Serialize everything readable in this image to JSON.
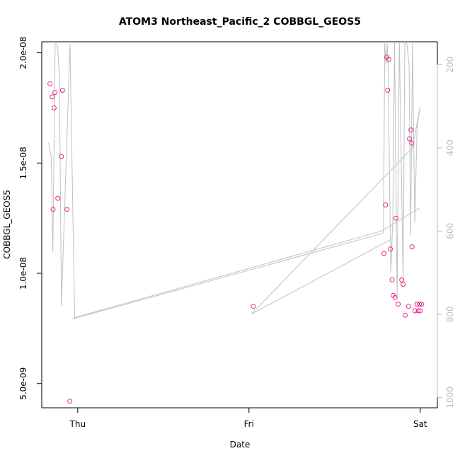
{
  "chart_data": {
    "type": "scatter",
    "title": "ATOM3 Northeast_Pacific_2 COBBGL_GEOS5",
    "xlabel": "Date",
    "ylabel": "COBBGL_GEOS5",
    "x_ticks": [
      {
        "label": "Thu",
        "value": 1.0
      },
      {
        "label": "Fri",
        "value": 2.0
      },
      {
        "label": "Sat",
        "value": 3.0
      }
    ],
    "y_ticks": [
      {
        "label": "5.0e-09",
        "value": 5e-09
      },
      {
        "label": "1.0e-08",
        "value": 1e-08
      },
      {
        "label": "1.5e-08",
        "value": 1.5e-08
      },
      {
        "label": "2.0e-08",
        "value": 2e-08
      }
    ],
    "y2_ticks": [
      {
        "label": "200",
        "value": 200
      },
      {
        "label": "400",
        "value": 400
      },
      {
        "label": "600",
        "value": 600
      },
      {
        "label": "800",
        "value": 800
      },
      {
        "label": "1000",
        "value": 1000
      }
    ],
    "xlim": [
      0.79,
      3.1
    ],
    "ylim": [
      3.9e-09,
      2.05e-08
    ],
    "y2lim": [
      1025,
      145
    ],
    "grid": false,
    "point_color": "#e8258a",
    "line_color": "#c0c0c0",
    "secondary_axis_color": "#bbbbbb",
    "series": [
      {
        "kind": "points",
        "axis": "left",
        "x": [
          0.838,
          0.851,
          0.856,
          0.862,
          0.867,
          0.884,
          0.905,
          0.911,
          0.937,
          0.954,
          2.025,
          2.788,
          2.797,
          2.805,
          2.81,
          2.817,
          2.826,
          2.836,
          2.842,
          2.853,
          2.871,
          2.892,
          2.9,
          2.912,
          2.932,
          2.937,
          2.952,
          2.969,
          2.981,
          2.988,
          2.995,
          3.008,
          2.999,
          2.951,
          2.946,
          2.858
        ],
        "y": [
          1.86e-08,
          1.8e-08,
          1.29e-08,
          1.75e-08,
          1.82e-08,
          1.34e-08,
          1.53e-08,
          1.83e-08,
          1.29e-08,
          4.2e-09,
          8.5e-09,
          1.09e-08,
          1.31e-08,
          1.98e-08,
          1.83e-08,
          1.97e-08,
          1.11e-08,
          9.7e-09,
          9e-09,
          8.9e-09,
          8.6e-09,
          9.7e-09,
          9.5e-09,
          8.1e-09,
          8.5e-09,
          1.61e-08,
          1.12e-08,
          8.3e-09,
          8.6e-09,
          8.3e-09,
          8.6e-09,
          8.6e-09,
          8.3e-09,
          1.59e-08,
          1.65e-08,
          1.25e-08
        ]
      },
      {
        "kind": "line",
        "axis": "right",
        "x": [
          0.83,
          0.845,
          0.855,
          0.868,
          0.874,
          0.882,
          0.893,
          0.905,
          0.955,
          0.982,
          2.785,
          2.793,
          2.8,
          2.808,
          2.812,
          2.828,
          2.84,
          2.85,
          2.865,
          2.878,
          2.9,
          2.91,
          2.922,
          2.935,
          2.944,
          2.955,
          2.968,
          2.982,
          3.0,
          2.955,
          2.013
        ],
        "y": [
          388,
          420,
          650,
          150,
          150,
          155,
          230,
          780,
          150,
          810,
          605,
          100,
          200,
          150,
          200,
          700,
          570,
          120,
          760,
          100,
          720,
          100,
          150,
          200,
          610,
          100,
          580,
          350,
          300,
          400,
          800
        ]
      },
      {
        "kind": "line",
        "axis": "right",
        "x": [
          0.966,
          2.775,
          2.995
        ],
        "y": [
          810,
          600,
          545
        ]
      },
      {
        "kind": "line",
        "axis": "right",
        "x": [
          2.013,
          2.83
        ],
        "y": [
          800,
          620
        ]
      }
    ]
  }
}
